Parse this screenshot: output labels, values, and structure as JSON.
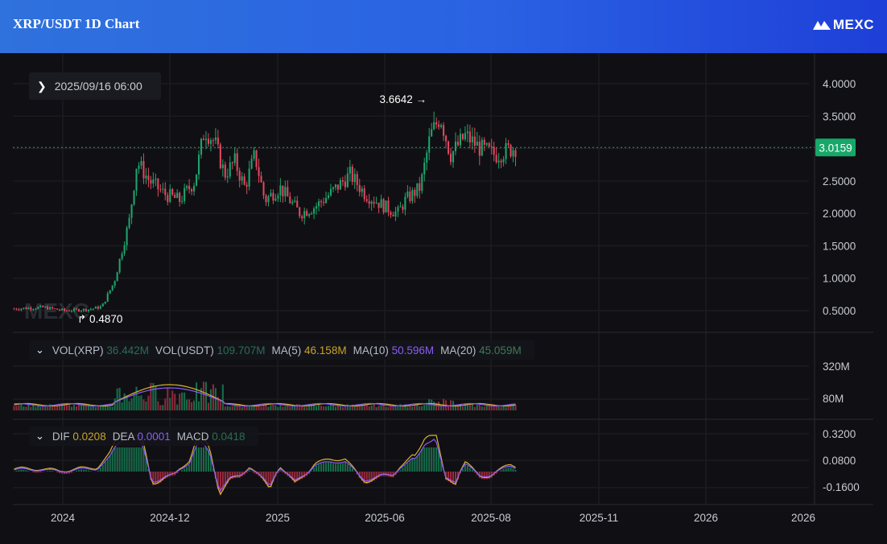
{
  "header": {
    "title": "XRP/USDT 1D Chart",
    "logo_text": "MEXC"
  },
  "date_label": "2025/09/16 06:00",
  "price_axis": {
    "ticks": [
      "4.0000",
      "3.5000",
      "3.0000",
      "2.5000",
      "2.0000",
      "1.5000",
      "1.0000",
      "0.5000"
    ]
  },
  "last_price": {
    "value": "3.0159",
    "color": "#17a869"
  },
  "annotations": {
    "high": "3.6642",
    "low": "0.4870"
  },
  "volume_legend": {
    "items": [
      {
        "label": "VOL(XRP)",
        "value": "36.442M",
        "color": "#2a6e52"
      },
      {
        "label": "VOL(USDT)",
        "value": "109.707M",
        "color": "#2a6e52"
      },
      {
        "label": "MA(5)",
        "value": "46.158M",
        "color": "#c9a227"
      },
      {
        "label": "MA(10)",
        "value": "50.596M",
        "color": "#8a5cf6"
      },
      {
        "label": "MA(20)",
        "value": "45.059M",
        "color": "#3f7a55"
      }
    ],
    "axis_ticks": [
      "320M",
      "80M"
    ]
  },
  "macd_legend": {
    "items": [
      {
        "label": "DIF",
        "value": "0.0208",
        "color": "#c9a227"
      },
      {
        "label": "DEA",
        "value": "0.0001",
        "color": "#8a5cf6"
      },
      {
        "label": "MACD",
        "value": "0.0418",
        "color": "#2a6e52"
      }
    ],
    "axis_ticks": [
      "0.3200",
      "0.0800",
      "-0.1600"
    ]
  },
  "time_axis": {
    "ticks": [
      "2024",
      "2024-12",
      "2025",
      "2025-06",
      "2025-08",
      "2025-11",
      "2026",
      "2026"
    ]
  },
  "colors": {
    "up": "#1fa36b",
    "down": "#e0475d",
    "dif": "#d9b233",
    "dea": "#8a5cf6"
  },
  "chart_data": {
    "type": "candlestick",
    "title": "XRP/USDT 1D Chart",
    "y_range": [
      0.3,
      4.2
    ],
    "price_path": [
      {
        "t": 0.0,
        "p": 0.53
      },
      {
        "t": 0.06,
        "p": 0.55
      },
      {
        "t": 0.1,
        "p": 0.5
      },
      {
        "t": 0.15,
        "p": 0.52
      },
      {
        "t": 0.175,
        "p": 0.56
      },
      {
        "t": 0.2,
        "p": 0.95
      },
      {
        "t": 0.23,
        "p": 1.9
      },
      {
        "t": 0.245,
        "p": 2.8
      },
      {
        "t": 0.27,
        "p": 2.5
      },
      {
        "t": 0.3,
        "p": 2.3
      },
      {
        "t": 0.33,
        "p": 2.2
      },
      {
        "t": 0.36,
        "p": 2.5
      },
      {
        "t": 0.38,
        "p": 3.3
      },
      {
        "t": 0.4,
        "p": 3.1
      },
      {
        "t": 0.42,
        "p": 2.6
      },
      {
        "t": 0.44,
        "p": 2.8
      },
      {
        "t": 0.46,
        "p": 2.4
      },
      {
        "t": 0.48,
        "p": 2.9
      },
      {
        "t": 0.5,
        "p": 2.2
      },
      {
        "t": 0.53,
        "p": 2.4
      },
      {
        "t": 0.57,
        "p": 2.0
      },
      {
        "t": 0.6,
        "p": 2.1
      },
      {
        "t": 0.63,
        "p": 2.3
      },
      {
        "t": 0.67,
        "p": 2.6
      },
      {
        "t": 0.7,
        "p": 2.3
      },
      {
        "t": 0.74,
        "p": 2.1
      },
      {
        "t": 0.765,
        "p": 2.0
      },
      {
        "t": 0.78,
        "p": 2.2
      },
      {
        "t": 0.81,
        "p": 2.4
      },
      {
        "t": 0.83,
        "p": 3.2
      },
      {
        "t": 0.85,
        "p": 3.5
      },
      {
        "t": 0.87,
        "p": 2.9
      },
      {
        "t": 0.9,
        "p": 3.2
      },
      {
        "t": 0.93,
        "p": 3.0
      },
      {
        "t": 0.96,
        "p": 2.9
      },
      {
        "t": 1.0,
        "p": 3.02
      }
    ]
  }
}
